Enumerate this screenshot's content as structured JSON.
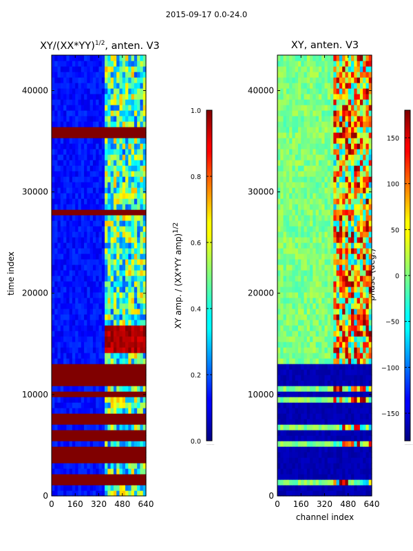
{
  "suptitle": "2015-09-17 0.0-24.0",
  "chart_data": [
    {
      "type": "heatmap",
      "title": "XY/(XX*YY)",
      "title_exponent": "1/2",
      "title_suffix": ", anten. V3",
      "xlabel": "",
      "ylabel": "time index",
      "xlim": [
        0,
        640
      ],
      "ylim": [
        0,
        43500
      ],
      "xticks": [
        0,
        160,
        320,
        480,
        640
      ],
      "yticks": [
        0,
        10000,
        20000,
        30000,
        40000
      ],
      "colorbar": {
        "label": "XY amp. / (XX*YY amp)",
        "label_exponent": "1/2",
        "range": [
          0.0,
          1.0
        ],
        "ticks": [
          0.0,
          0.2,
          0.4,
          0.6,
          0.8,
          1.0
        ],
        "tick_labels": [
          "0.0",
          "0.2",
          "0.4",
          "0.6",
          "0.8",
          "1.0"
        ],
        "cmap": "jet"
      },
      "colorbar_footnote": "......"
    },
    {
      "type": "heatmap",
      "title": "XY, anten. V3",
      "xlabel": "channel index",
      "ylabel": "",
      "xlim": [
        0,
        640
      ],
      "ylim": [
        0,
        43500
      ],
      "xticks": [
        0,
        160,
        320,
        480,
        640
      ],
      "yticks": [
        0,
        10000,
        20000,
        30000,
        40000
      ],
      "colorbar": {
        "label": "phase (deg.)",
        "range": [
          -180,
          180
        ],
        "ticks": [
          -150,
          -100,
          -50,
          0,
          50,
          100,
          150
        ],
        "tick_labels": [
          "−150",
          "−100",
          "−50",
          "0",
          "50",
          "100",
          "150"
        ],
        "cmap": "jet"
      },
      "colorbar_footnote": "......"
    }
  ]
}
